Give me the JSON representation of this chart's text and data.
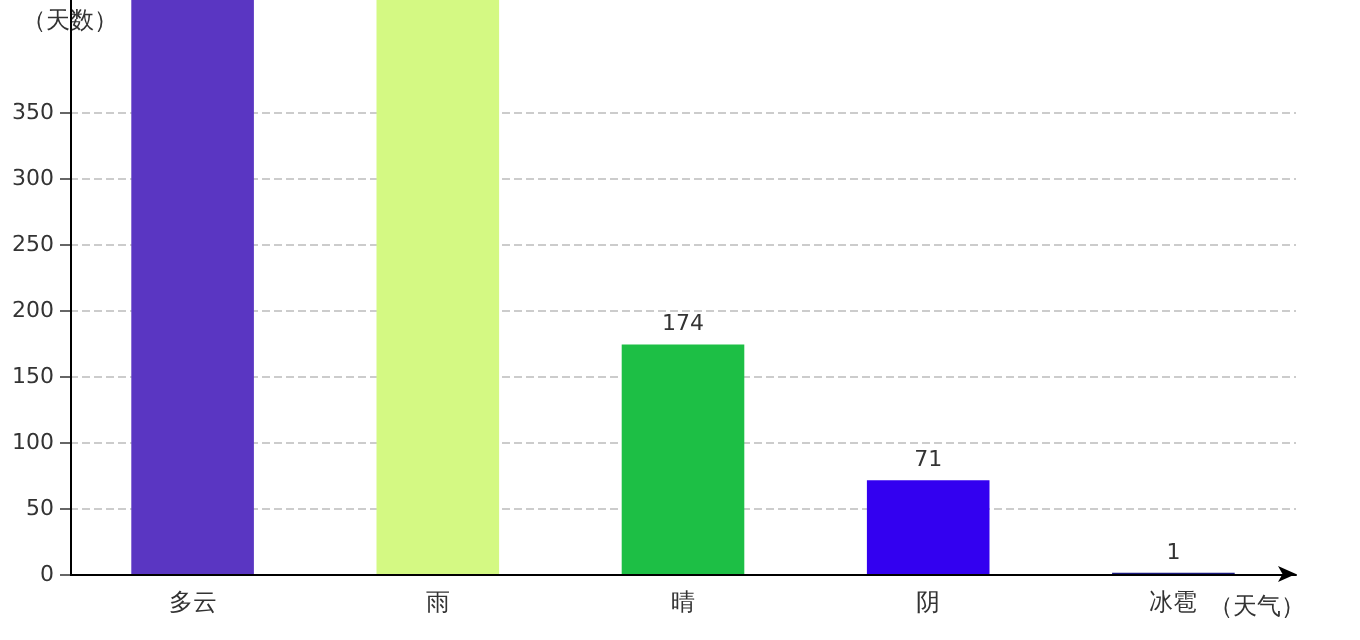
{
  "chart_data": {
    "type": "bar",
    "xlabel": "（天气）",
    "ylabel": "（天数）",
    "categories": [
      "多云",
      "雨",
      "晴",
      "阴",
      "冰雹"
    ],
    "values": [
      435,
      435,
      174,
      71,
      1
    ],
    "value_labels": [
      null,
      null,
      "174",
      "71",
      "1"
    ],
    "colors": [
      "#5a36c2",
      "#d4f983",
      "#1dbf45",
      "#3300f0",
      "#1a1a80"
    ],
    "ylim": [
      0,
      435
    ],
    "yticks": [
      0,
      50,
      100,
      150,
      200,
      250,
      300,
      350
    ],
    "grid": "y"
  }
}
